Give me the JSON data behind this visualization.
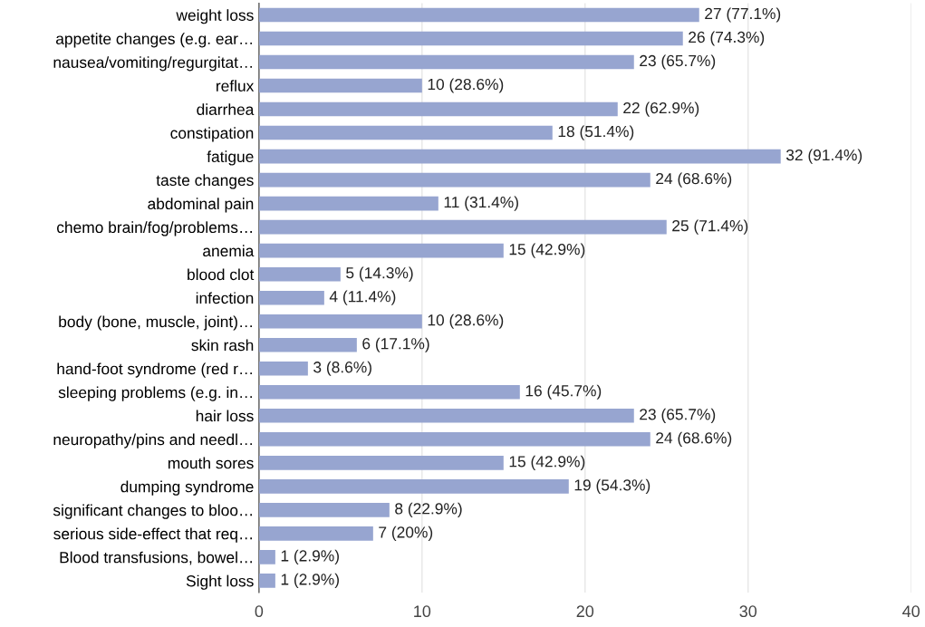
{
  "chart_data": {
    "type": "bar",
    "orientation": "horizontal",
    "color": "#97a5d0",
    "categories": [
      "weight loss",
      "appetite changes (e.g. ear…",
      "nausea/vomiting/regurgitat…",
      "reflux",
      "diarrhea",
      "constipation",
      "fatigue",
      "taste changes",
      "abdominal pain",
      "chemo brain/fog/problems…",
      "anemia",
      "blood clot",
      "infection",
      "body (bone, muscle, joint)…",
      "skin rash",
      "hand-foot syndrome (red r…",
      "sleeping problems (e.g. in…",
      "hair loss",
      "neuropathy/pins and needl…",
      "mouth sores",
      "dumping syndrome",
      "significant changes to bloo…",
      "serious side-effect that req…",
      "Blood transfusions, bowel…",
      "Sight loss"
    ],
    "values": [
      27,
      26,
      23,
      10,
      22,
      18,
      32,
      24,
      11,
      25,
      15,
      5,
      4,
      10,
      6,
      3,
      16,
      23,
      24,
      15,
      19,
      8,
      7,
      1,
      1
    ],
    "value_labels": [
      "27 (77.1%)",
      "26 (74.3%)",
      "23 (65.7%)",
      "10 (28.6%)",
      "22 (62.9%)",
      "18 (51.4%)",
      "32 (91.4%)",
      "24 (68.6%)",
      "11 (31.4%)",
      "25 (71.4%)",
      "15 (42.9%)",
      "5 (14.3%)",
      "4 (11.4%)",
      "10 (28.6%)",
      "6 (17.1%)",
      "3 (8.6%)",
      "16 (45.7%)",
      "23 (65.7%)",
      "24 (68.6%)",
      "15 (42.9%)",
      "19 (54.3%)",
      "8 (22.9%)",
      "7 (20%)",
      "1 (2.9%)",
      "1 (2.9%)"
    ],
    "xlim": [
      0,
      40
    ],
    "xticks": [
      0,
      10,
      20,
      30,
      40
    ],
    "grid": "x",
    "legend": false
  }
}
